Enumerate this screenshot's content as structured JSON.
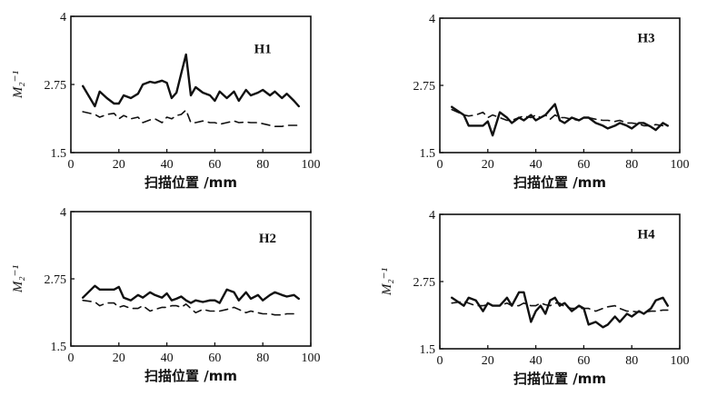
{
  "chart_data": [
    {
      "type": "line",
      "title": "H1",
      "xlabel": "扫描位置 /mm",
      "ylabel": "M₂⁻¹",
      "xlim": [
        0,
        100
      ],
      "ylim": [
        1.5,
        4
      ],
      "xticks": [
        0,
        20,
        40,
        60,
        80,
        100
      ],
      "yticks": [
        1.5,
        2.75,
        4
      ],
      "x": [
        5,
        10,
        12,
        15,
        18,
        20,
        22,
        25,
        28,
        30,
        33,
        35,
        38,
        40,
        42,
        44,
        46,
        48,
        50,
        52,
        55,
        58,
        60,
        62,
        65,
        68,
        70,
        73,
        75,
        78,
        80,
        83,
        85,
        88,
        90,
        93,
        95
      ],
      "series": [
        {
          "style": "solid",
          "values": [
            2.72,
            2.35,
            2.62,
            2.5,
            2.4,
            2.4,
            2.55,
            2.5,
            2.58,
            2.75,
            2.8,
            2.78,
            2.82,
            2.78,
            2.5,
            2.6,
            2.95,
            3.3,
            2.55,
            2.7,
            2.6,
            2.55,
            2.45,
            2.62,
            2.5,
            2.62,
            2.45,
            2.65,
            2.55,
            2.6,
            2.65,
            2.55,
            2.62,
            2.5,
            2.58,
            2.45,
            2.35
          ]
        },
        {
          "style": "dashed",
          "values": [
            2.25,
            2.2,
            2.15,
            2.2,
            2.22,
            2.12,
            2.18,
            2.12,
            2.15,
            2.05,
            2.1,
            2.12,
            2.05,
            2.15,
            2.12,
            2.18,
            2.2,
            2.28,
            2.05,
            2.05,
            2.08,
            2.05,
            2.05,
            2.02,
            2.05,
            2.08,
            2.05,
            2.06,
            2.05,
            2.05,
            2.03,
            2.0,
            1.98,
            1.98,
            2.0,
            2.0,
            2.0
          ]
        }
      ]
    },
    {
      "type": "line",
      "title": "H3",
      "xlabel": "扫描位置 /mm",
      "ylabel": "",
      "xlim": [
        0,
        100
      ],
      "ylim": [
        1.5,
        4
      ],
      "xticks": [
        0,
        20,
        40,
        60,
        80,
        100
      ],
      "yticks": [
        1.5,
        2.75,
        4
      ],
      "x": [
        5,
        10,
        12,
        15,
        18,
        20,
        22,
        25,
        28,
        30,
        33,
        35,
        38,
        40,
        42,
        44,
        46,
        48,
        50,
        52,
        55,
        58,
        60,
        62,
        65,
        68,
        70,
        73,
        75,
        78,
        80,
        83,
        85,
        88,
        90,
        93,
        95
      ],
      "series": [
        {
          "style": "solid",
          "values": [
            2.35,
            2.2,
            2.0,
            2.0,
            2.0,
            2.08,
            1.82,
            2.25,
            2.15,
            2.05,
            2.15,
            2.1,
            2.2,
            2.1,
            2.15,
            2.2,
            2.3,
            2.4,
            2.1,
            2.05,
            2.15,
            2.1,
            2.15,
            2.15,
            2.05,
            2.0,
            1.95,
            2.0,
            2.05,
            2.0,
            1.95,
            2.05,
            2.05,
            1.98,
            1.92,
            2.05,
            2.0
          ]
        },
        {
          "style": "dashed",
          "values": [
            2.3,
            2.2,
            2.18,
            2.2,
            2.25,
            2.15,
            2.2,
            2.15,
            2.1,
            2.1,
            2.15,
            2.18,
            2.15,
            2.2,
            2.15,
            2.2,
            2.12,
            2.2,
            2.15,
            2.15,
            2.12,
            2.1,
            2.15,
            2.15,
            2.12,
            2.1,
            2.1,
            2.08,
            2.1,
            2.05,
            2.05,
            2.03,
            2.0,
            2.0,
            2.02,
            2.0,
            1.98
          ]
        }
      ]
    },
    {
      "type": "line",
      "title": "H2",
      "xlabel": "扫描位置 /mm",
      "ylabel": "M₂⁻¹",
      "xlim": [
        0,
        100
      ],
      "ylim": [
        1.5,
        4
      ],
      "xticks": [
        0,
        20,
        40,
        60,
        80,
        100
      ],
      "yticks": [
        1.5,
        2.75,
        4
      ],
      "x": [
        5,
        10,
        12,
        15,
        18,
        20,
        22,
        25,
        28,
        30,
        33,
        35,
        38,
        40,
        42,
        44,
        46,
        48,
        50,
        52,
        55,
        58,
        60,
        62,
        65,
        68,
        70,
        73,
        75,
        78,
        80,
        83,
        85,
        88,
        90,
        93,
        95
      ],
      "series": [
        {
          "style": "solid",
          "values": [
            2.4,
            2.62,
            2.55,
            2.55,
            2.55,
            2.6,
            2.4,
            2.35,
            2.45,
            2.4,
            2.5,
            2.45,
            2.4,
            2.48,
            2.35,
            2.38,
            2.42,
            2.35,
            2.3,
            2.35,
            2.32,
            2.35,
            2.35,
            2.3,
            2.55,
            2.5,
            2.35,
            2.5,
            2.38,
            2.45,
            2.35,
            2.45,
            2.5,
            2.45,
            2.42,
            2.45,
            2.38
          ]
        },
        {
          "style": "dashed",
          "values": [
            2.35,
            2.32,
            2.25,
            2.3,
            2.3,
            2.22,
            2.25,
            2.2,
            2.2,
            2.25,
            2.15,
            2.18,
            2.22,
            2.22,
            2.25,
            2.25,
            2.22,
            2.28,
            2.2,
            2.12,
            2.18,
            2.15,
            2.15,
            2.15,
            2.18,
            2.22,
            2.18,
            2.12,
            2.15,
            2.12,
            2.1,
            2.1,
            2.08,
            2.08,
            2.1,
            2.1,
            2.12
          ]
        }
      ]
    },
    {
      "type": "line",
      "title": "H4",
      "xlabel": "扫描位置 /mm",
      "ylabel": "M₂⁻¹",
      "xlim": [
        0,
        100
      ],
      "ylim": [
        1.5,
        4
      ],
      "xticks": [
        0,
        20,
        40,
        60,
        80,
        100
      ],
      "yticks": [
        1.5,
        2.75,
        4
      ],
      "x": [
        5,
        10,
        12,
        15,
        18,
        20,
        22,
        25,
        28,
        30,
        33,
        35,
        38,
        40,
        42,
        44,
        46,
        48,
        50,
        52,
        55,
        58,
        60,
        62,
        65,
        68,
        70,
        73,
        75,
        78,
        80,
        83,
        85,
        88,
        90,
        93,
        95
      ],
      "series": [
        {
          "style": "solid",
          "values": [
            2.45,
            2.3,
            2.45,
            2.4,
            2.2,
            2.35,
            2.3,
            2.3,
            2.45,
            2.3,
            2.55,
            2.55,
            2.0,
            2.2,
            2.3,
            2.15,
            2.4,
            2.45,
            2.3,
            2.35,
            2.2,
            2.3,
            2.25,
            1.95,
            2.0,
            1.9,
            1.95,
            2.1,
            2.0,
            2.15,
            2.1,
            2.2,
            2.15,
            2.25,
            2.4,
            2.45,
            2.3
          ]
        },
        {
          "style": "dashed",
          "values": [
            2.35,
            2.38,
            2.35,
            2.3,
            2.3,
            2.32,
            2.3,
            2.3,
            2.35,
            2.3,
            2.3,
            2.35,
            2.3,
            2.3,
            2.35,
            2.32,
            2.3,
            2.35,
            2.35,
            2.28,
            2.25,
            2.25,
            2.25,
            2.25,
            2.2,
            2.25,
            2.28,
            2.3,
            2.25,
            2.2,
            2.2,
            2.18,
            2.18,
            2.2,
            2.2,
            2.22,
            2.22
          ]
        }
      ]
    }
  ]
}
